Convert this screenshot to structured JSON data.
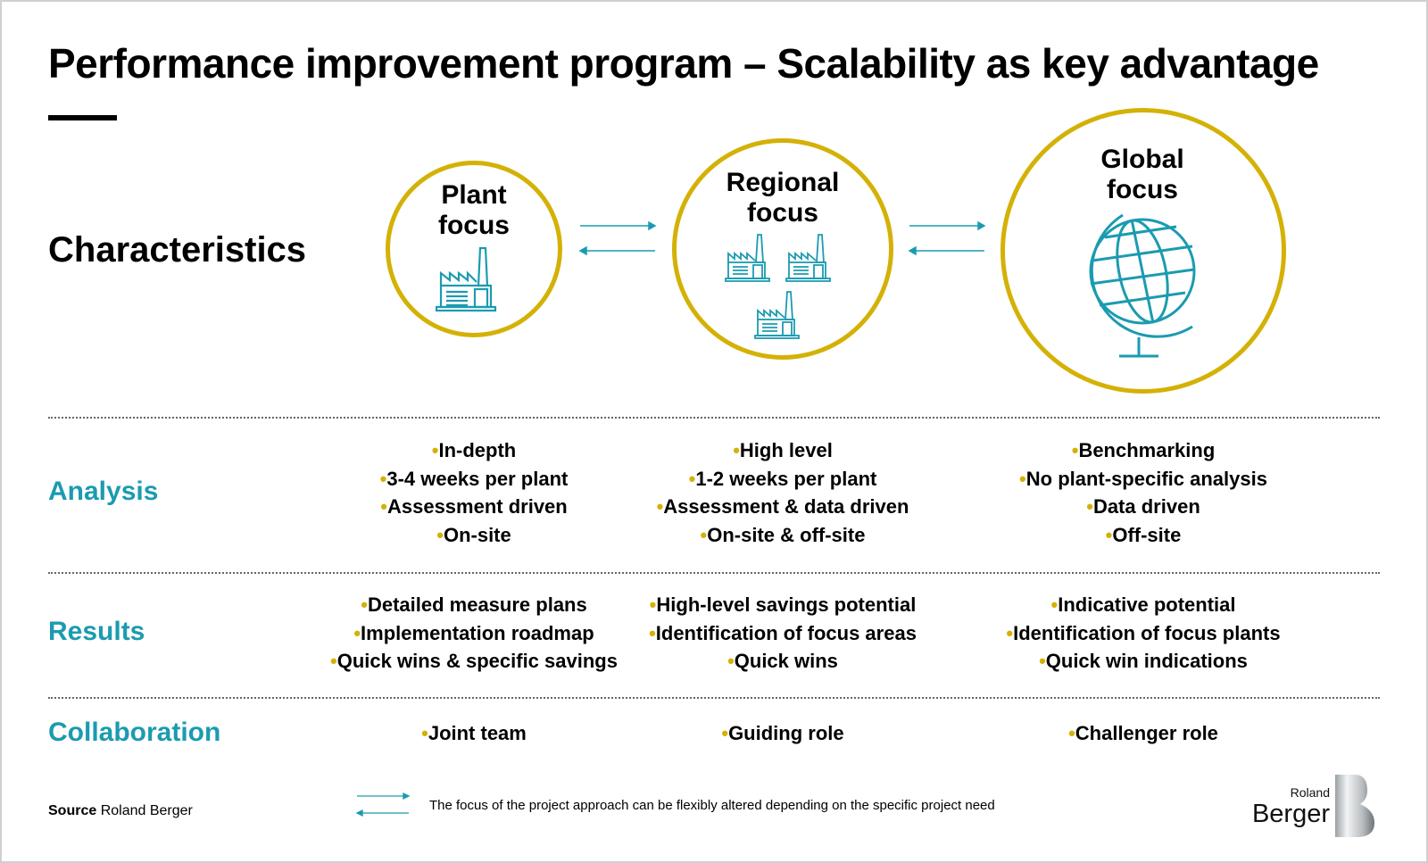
{
  "title": "Performance improvement program – Scalability as key advantage",
  "characteristics_label": "Characteristics",
  "colors": {
    "accent_gold": "#d4b106",
    "accent_teal": "#1b9bb0"
  },
  "focus_levels": [
    {
      "title_line1": "Plant",
      "title_line2": "focus",
      "icon": "factory-icon"
    },
    {
      "title_line1": "Regional",
      "title_line2": "focus",
      "icon": "three-factories-icon"
    },
    {
      "title_line1": "Global",
      "title_line2": "focus",
      "icon": "globe-icon"
    }
  ],
  "rows": {
    "analysis": {
      "label": "Analysis",
      "columns": [
        [
          "In-depth",
          "3-4 weeks per plant",
          "Assessment driven",
          "On-site"
        ],
        [
          "High level",
          "1-2 weeks per plant",
          "Assessment & data driven",
          "On-site & off-site"
        ],
        [
          "Benchmarking",
          "No plant-specific analysis",
          "Data driven",
          "Off-site"
        ]
      ]
    },
    "results": {
      "label": "Results",
      "columns": [
        [
          "Detailed measure plans",
          "Implementation roadmap",
          "Quick wins & specific savings"
        ],
        [
          "High-level savings potential",
          "Identification of focus areas",
          "Quick wins"
        ],
        [
          "Indicative potential",
          "Identification of focus plants",
          "Quick win indications"
        ]
      ]
    },
    "collaboration": {
      "label": "Collaboration",
      "columns": [
        [
          "Joint team"
        ],
        [
          "Guiding role"
        ],
        [
          "Challenger role"
        ]
      ]
    }
  },
  "footer": {
    "source_label": "Source",
    "source_value": "Roland Berger",
    "legend_note": "The focus of the project approach can be flexibly altered depending on the specific project need",
    "logo_text": "Roland Berger"
  }
}
